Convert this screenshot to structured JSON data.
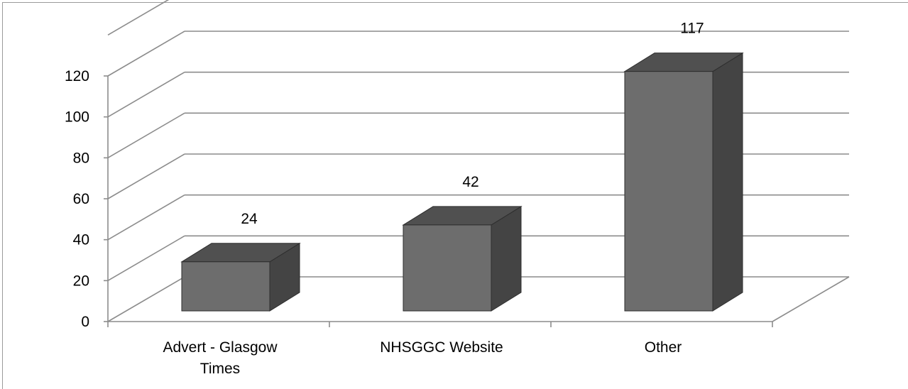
{
  "chart_data": {
    "type": "bar",
    "style": "3d-column",
    "categories": [
      "Advert - Glasgow Times",
      "NHSGGC Website",
      "Other"
    ],
    "category_lines": [
      [
        "Advert - Glasgow",
        "Times"
      ],
      [
        "NHSGGC Website"
      ],
      [
        "Other"
      ]
    ],
    "values": [
      24,
      42,
      117
    ],
    "data_labels": [
      "24",
      "42",
      "117"
    ],
    "y_ticks": [
      "0",
      "20",
      "40",
      "60",
      "80",
      "100",
      "120"
    ],
    "ylim": [
      0,
      120
    ],
    "grid": true,
    "legend": "none",
    "title": "",
    "xlabel": "",
    "ylabel": "",
    "colors": {
      "bar_front": "#6d6d6d",
      "bar_top": "#505050",
      "bar_side": "#444444",
      "grid": "#8c8c8c"
    }
  }
}
